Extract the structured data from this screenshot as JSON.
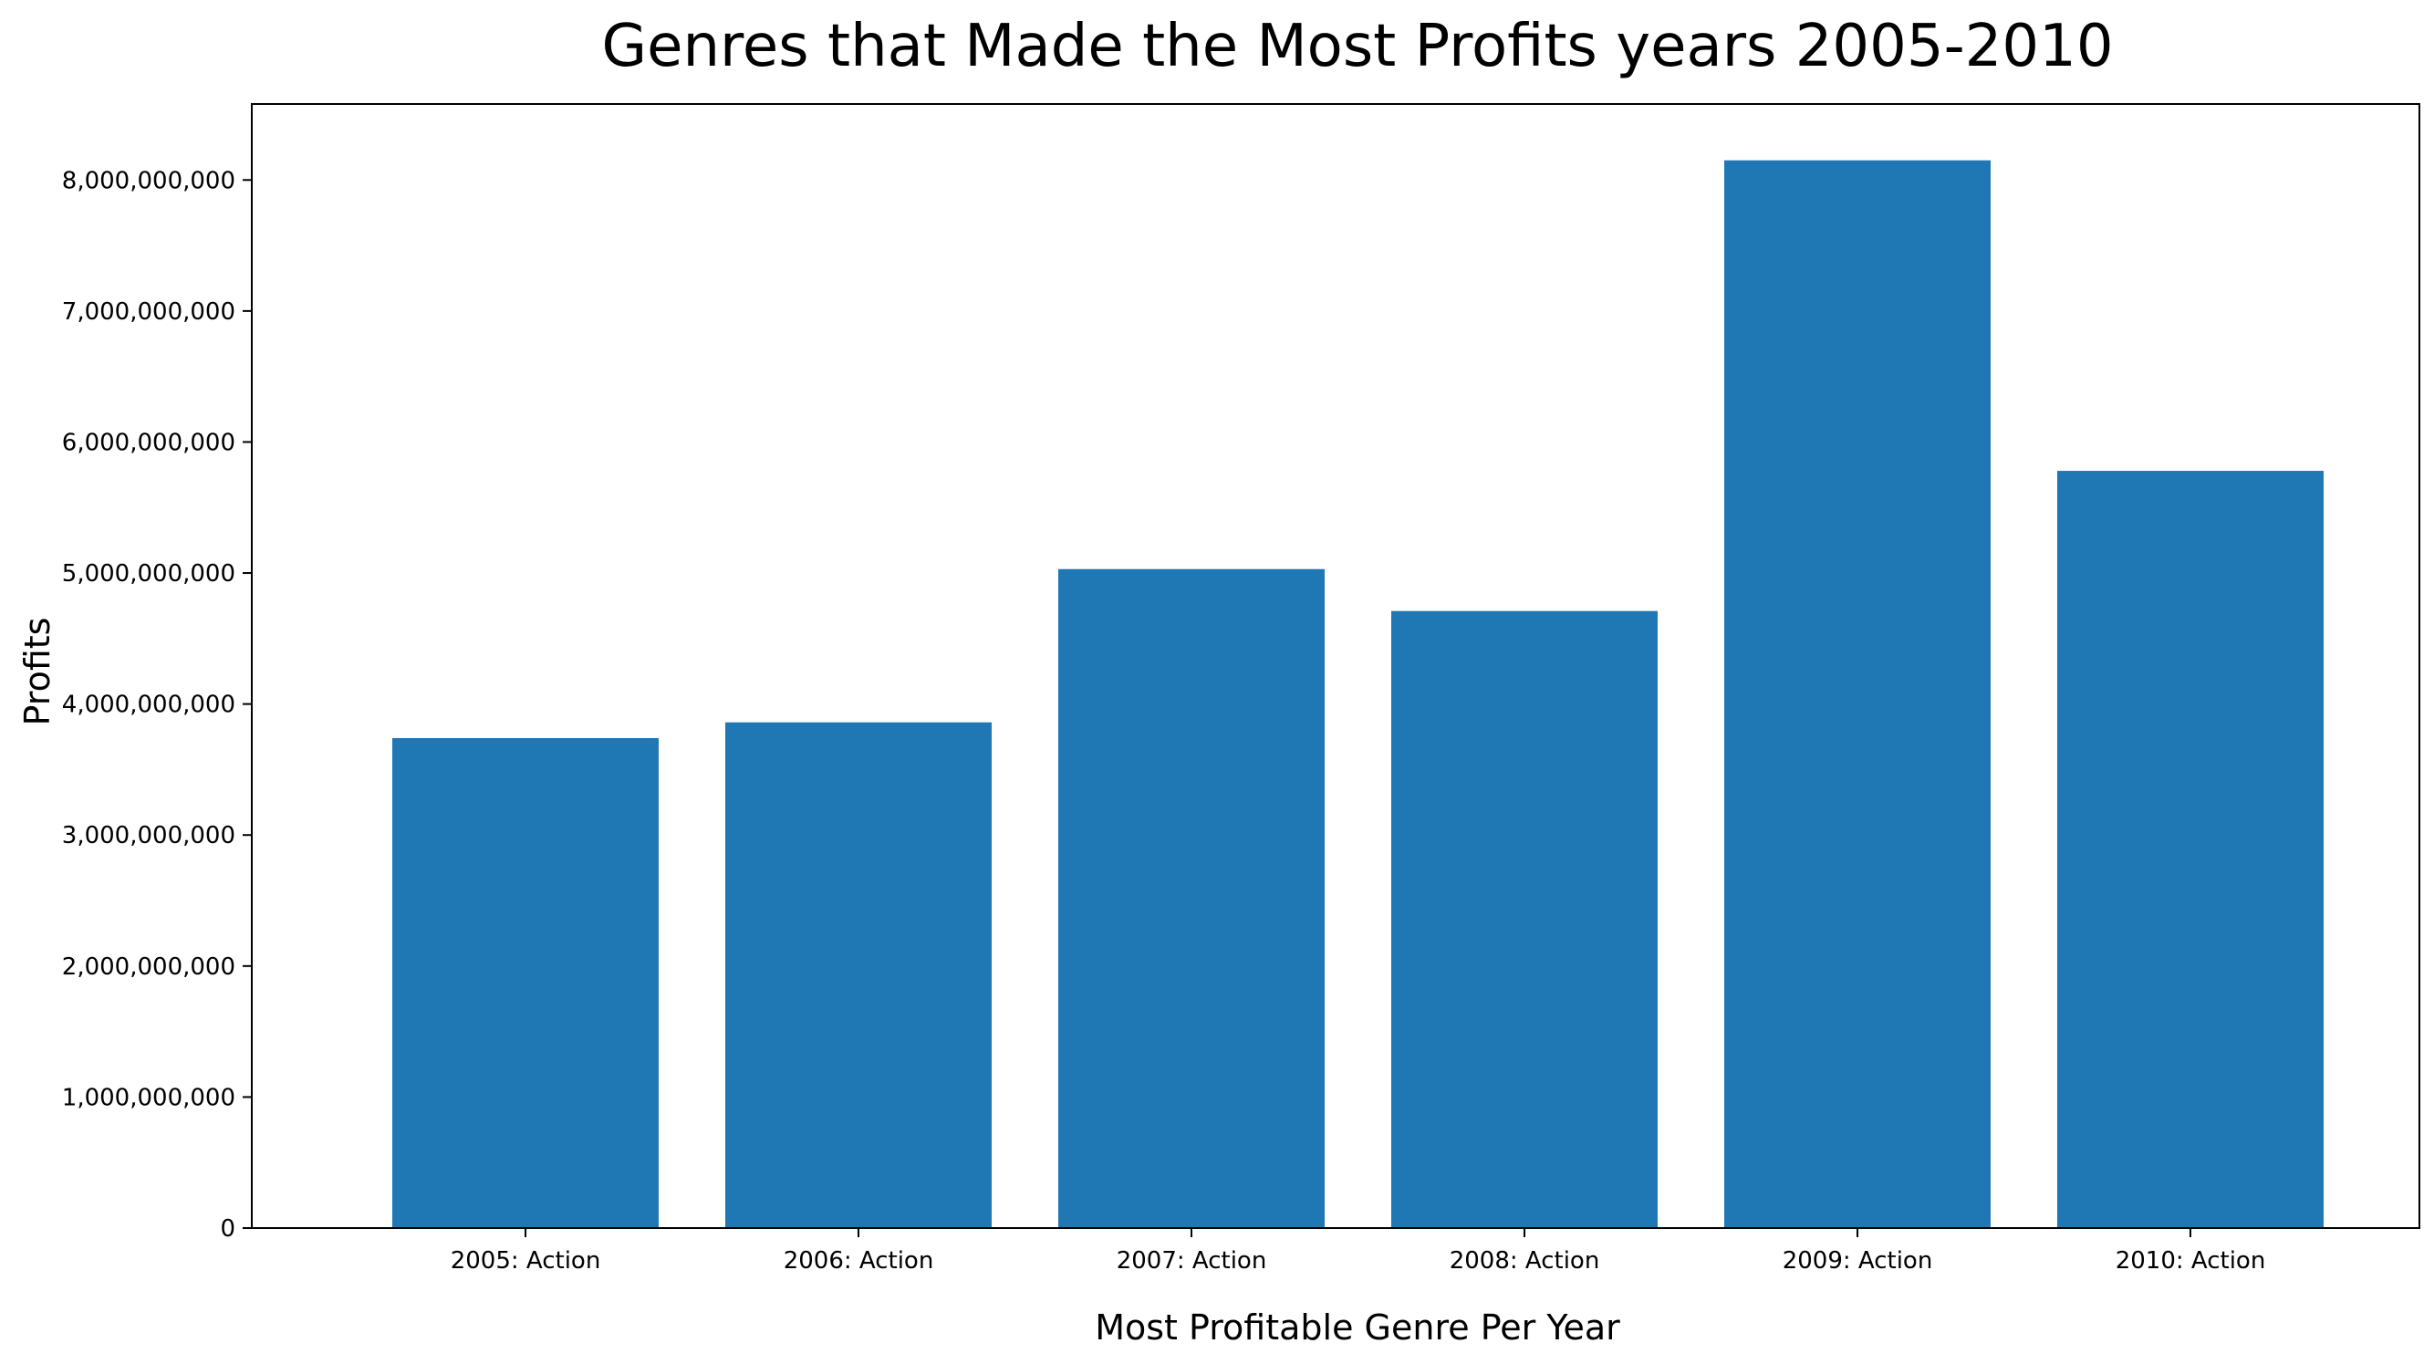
{
  "colors": {
    "bar": "#1f77b4",
    "background": "#ffffff",
    "axis": "#000000"
  },
  "chart_data": {
    "type": "bar",
    "title": "Genres that Made the Most Profits years 2005-2010",
    "xlabel": "Most Profitable Genre Per Year",
    "ylabel": "Profits",
    "categories": [
      "2005: Action",
      "2006: Action",
      "2007: Action",
      "2008: Action",
      "2009: Action",
      "2010: Action"
    ],
    "values": [
      3740000000,
      3860000000,
      5030000000,
      4710000000,
      8150000000,
      5780000000
    ],
    "ylim": [
      0,
      8580000000
    ],
    "yticks": [
      0,
      1000000000,
      2000000000,
      3000000000,
      4000000000,
      5000000000,
      6000000000,
      7000000000,
      8000000000
    ],
    "ytick_labels": [
      "0",
      "1,000,000,000",
      "2,000,000,000",
      "3,000,000,000",
      "4,000,000,000",
      "5,000,000,000",
      "6,000,000,000",
      "7,000,000,000",
      "8,000,000,000"
    ],
    "grid": false,
    "legend": false
  }
}
